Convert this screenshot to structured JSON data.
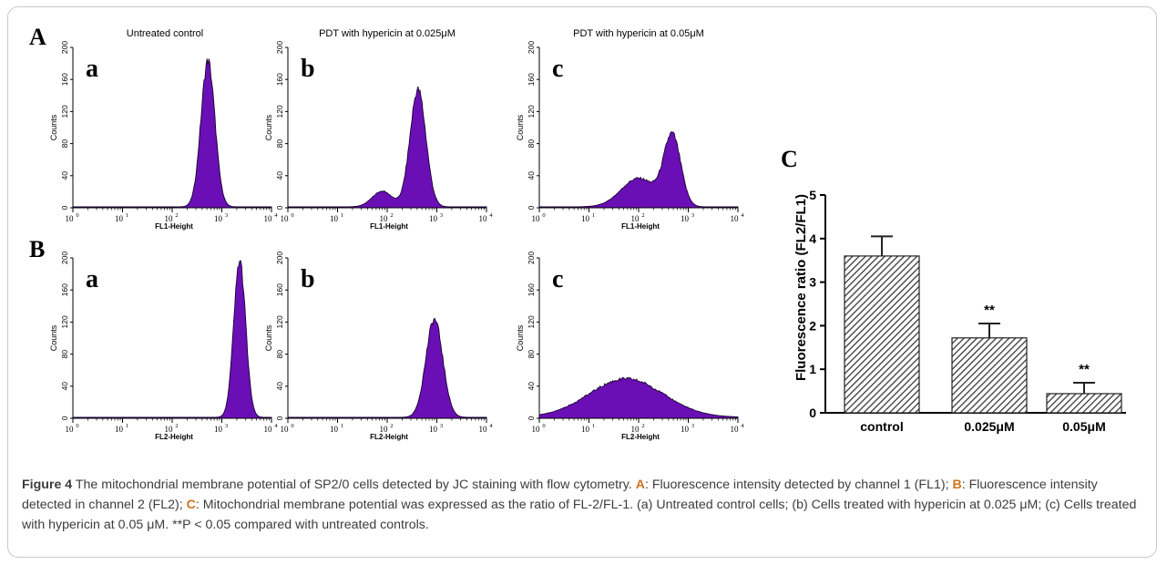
{
  "figure": {
    "panel_labels": {
      "A": "A",
      "B": "B",
      "C": "C"
    },
    "row_A": {
      "x_axis_label": "FL1-Height",
      "plots": [
        {
          "letter": "a",
          "title": "Untreated control"
        },
        {
          "letter": "b",
          "title": "PDT with hypericin at 0.025μM"
        },
        {
          "letter": "c",
          "title": "PDT with hypericin at 0.05μM"
        }
      ]
    },
    "row_B": {
      "x_axis_label": "FL2-Height",
      "plots": [
        {
          "letter": "a",
          "title": ""
        },
        {
          "letter": "b",
          "title": ""
        },
        {
          "letter": "c",
          "title": ""
        }
      ]
    },
    "histogram_y_label": "Counts",
    "histogram_y_ticks": [
      "0",
      "40",
      "80",
      "120",
      "160",
      "200"
    ],
    "histogram_x_ticks": [
      "10",
      "10",
      "10",
      "10",
      "10"
    ],
    "histogram_x_exponents": [
      "0",
      "1",
      "2",
      "3",
      "4"
    ],
    "fill_color": "#6a0fb5"
  },
  "chart_data": [
    {
      "type": "area",
      "panel": "A-a",
      "title": "Untreated control",
      "xlabel": "FL1-Height",
      "ylabel": "Counts",
      "x_scale": "log",
      "xlim": [
        1,
        10000
      ],
      "ylim": [
        0,
        200
      ],
      "peak": {
        "log_x": 2.72,
        "counts": 182
      }
    },
    {
      "type": "area",
      "panel": "A-b",
      "title": "PDT with hypericin at 0.025μM",
      "xlabel": "FL1-Height",
      "ylabel": "Counts",
      "x_scale": "log",
      "xlim": [
        1,
        10000
      ],
      "ylim": [
        0,
        200
      ],
      "peak": {
        "log_x": 2.6,
        "counts": 146
      }
    },
    {
      "type": "area",
      "panel": "A-c",
      "title": "PDT with hypericin at 0.05μM",
      "xlabel": "FL1-Height",
      "ylabel": "Counts",
      "x_scale": "log",
      "xlim": [
        1,
        10000
      ],
      "ylim": [
        0,
        200
      ],
      "peak": {
        "log_x": 2.65,
        "counts": 92
      }
    },
    {
      "type": "area",
      "panel": "B-a",
      "xlabel": "FL2-Height",
      "ylabel": "Counts",
      "x_scale": "log",
      "xlim": [
        1,
        10000
      ],
      "ylim": [
        0,
        200
      ],
      "peak": {
        "log_x": 3.35,
        "counts": 195
      }
    },
    {
      "type": "area",
      "panel": "B-b",
      "xlabel": "FL2-Height",
      "ylabel": "Counts",
      "x_scale": "log",
      "xlim": [
        1,
        10000
      ],
      "ylim": [
        0,
        200
      ],
      "peak": {
        "log_x": 2.95,
        "counts": 122
      }
    },
    {
      "type": "area",
      "panel": "B-c",
      "xlabel": "FL2-Height",
      "ylabel": "Counts",
      "x_scale": "log",
      "xlim": [
        1,
        10000
      ],
      "ylim": [
        0,
        200
      ],
      "peak": {
        "log_x": 1.75,
        "counts": 48
      }
    },
    {
      "type": "bar",
      "panel": "C",
      "title": "",
      "xlabel": "",
      "ylabel": "Fluorescence ratio (FL2/FL1)",
      "categories": [
        "control",
        "0.025μM",
        "0.05μM"
      ],
      "values": [
        3.6,
        1.72,
        0.44
      ],
      "error": [
        0.45,
        0.33,
        0.25
      ],
      "annotations": [
        "",
        "**",
        "**"
      ],
      "ylim": [
        0,
        5
      ],
      "y_ticks": [
        "0",
        "1",
        "2",
        "3",
        "4",
        "5"
      ],
      "bar_pattern": "diagonal-hatch"
    }
  ],
  "caption": {
    "label": "Figure 4",
    "parts": [
      {
        "t": " The mitochondrial membrane potential of SP2/0 cells detected by JC staining with flow cytometry. "
      },
      {
        "t": "A",
        "b": true
      },
      {
        "t": ": Fluorescence intensity detected by channel 1 (FL1); "
      },
      {
        "t": "B",
        "b": true
      },
      {
        "t": ": Fluorescence intensity detected in channel 2 (FL2); "
      },
      {
        "t": "C",
        "b": true
      },
      {
        "t": ": Mitochondrial membrane potential was expressed as the ratio of FL-2/FL-1. (a) Untreated control cells; (b) Cells treated with hypericin at 0.025 μM; (c) Cells treated with hypericin at 0.05 μM. **P < 0.05 compared with untreated controls."
      }
    ]
  }
}
